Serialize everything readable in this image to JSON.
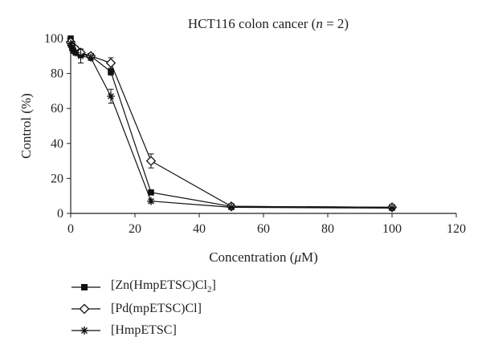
{
  "chart_data": {
    "type": "line",
    "title": "HCT116 colon cancer (n = 2)",
    "xlabel": "Concentration (μM)",
    "ylabel": "Control (%)",
    "xlim": [
      0,
      120
    ],
    "ylim": [
      0,
      100
    ],
    "xticks": [
      0,
      20,
      40,
      60,
      80,
      100,
      120
    ],
    "yticks": [
      0,
      20,
      40,
      60,
      80,
      100
    ],
    "grid": false,
    "legend_position": "bottom-left",
    "series": [
      {
        "name": "[Zn(HmpETSC)Cl2]",
        "marker": "filled-square",
        "points": [
          {
            "x": 0,
            "y": 100,
            "err": 0
          },
          {
            "x": 0.39,
            "y": 96,
            "err": 1
          },
          {
            "x": 0.78,
            "y": 94,
            "err": 1.5
          },
          {
            "x": 1.56,
            "y": 92,
            "err": 1.5
          },
          {
            "x": 3.125,
            "y": 91,
            "err": 2
          },
          {
            "x": 6.25,
            "y": 90,
            "err": 1.5
          },
          {
            "x": 12.5,
            "y": 81,
            "err": 2
          },
          {
            "x": 25,
            "y": 12,
            "err": 1
          },
          {
            "x": 50,
            "y": 4,
            "err": 0.5
          },
          {
            "x": 100,
            "y": 3.5,
            "err": 0.5
          }
        ]
      },
      {
        "name": "[Pd(mpETSC)Cl]",
        "marker": "open-diamond",
        "points": [
          {
            "x": 0,
            "y": 98,
            "err": 0
          },
          {
            "x": 0.39,
            "y": 96,
            "err": 1
          },
          {
            "x": 0.78,
            "y": 95,
            "err": 1
          },
          {
            "x": 1.56,
            "y": 94,
            "err": 1.5
          },
          {
            "x": 3.125,
            "y": 92,
            "err": 2
          },
          {
            "x": 6.25,
            "y": 90,
            "err": 1.5
          },
          {
            "x": 12.5,
            "y": 86,
            "err": 3
          },
          {
            "x": 25,
            "y": 30,
            "err": 4
          },
          {
            "x": 50,
            "y": 4,
            "err": 0.5
          },
          {
            "x": 100,
            "y": 3.5,
            "err": 0.5
          }
        ]
      },
      {
        "name": "[HmpETSC]",
        "marker": "asterisk",
        "points": [
          {
            "x": 0,
            "y": 97,
            "err": 0
          },
          {
            "x": 0.39,
            "y": 95,
            "err": 1
          },
          {
            "x": 0.78,
            "y": 93,
            "err": 1.5
          },
          {
            "x": 1.56,
            "y": 92,
            "err": 1.5
          },
          {
            "x": 3.125,
            "y": 90,
            "err": 4
          },
          {
            "x": 6.25,
            "y": 89,
            "err": 1.5
          },
          {
            "x": 12.5,
            "y": 67,
            "err": 4
          },
          {
            "x": 25,
            "y": 7,
            "err": 1
          },
          {
            "x": 50,
            "y": 3.5,
            "err": 0.5
          },
          {
            "x": 100,
            "y": 3,
            "err": 0.5
          }
        ]
      }
    ]
  }
}
